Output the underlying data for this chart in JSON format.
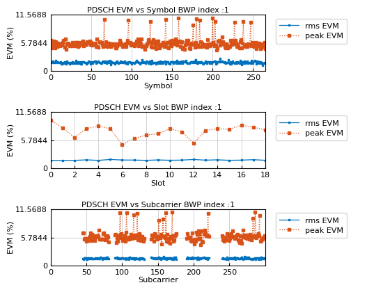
{
  "title1": "PDSCH EVM vs Symbol BWP index :1",
  "title2": "PDSCH EVM vs Slot BWP index :1",
  "title3": "PDSCH EVM vs Subcarrier BWP index :1",
  "xlabel1": "Symbol",
  "xlabel2": "Slot",
  "xlabel3": "Subcarrier",
  "ylabel": "EVM (%)",
  "yticks": [
    0,
    5.7844,
    11.5688
  ],
  "ytick_labels": [
    "0",
    "5.7844",
    "11.5688"
  ],
  "ylim": [
    0,
    11.5688
  ],
  "rms_color": "#0072BD",
  "peak_color": "#D95319",
  "rms_label": "rms EVM",
  "peak_label": "peak EVM",
  "symbol_xlim": [
    0,
    265
  ],
  "slot_xlim": [
    0,
    18
  ],
  "subcarrier_xlim": [
    0,
    300
  ],
  "symbol_xticks": [
    0,
    50,
    100,
    150,
    200,
    250
  ],
  "slot_xticks": [
    0,
    2,
    4,
    6,
    8,
    10,
    12,
    14,
    16,
    18
  ],
  "subcarrier_xticks": [
    0,
    50,
    100,
    150,
    200,
    250
  ],
  "n_symbols": 266,
  "n_slots": 19,
  "n_subcarriers": 300,
  "rms_symbol_mean": 1.8,
  "rms_symbol_std": 0.2,
  "peak_symbol_mean": 5.5,
  "peak_symbol_std": 0.5,
  "peak_symbol_spike_prob": 0.04,
  "peak_symbol_spike_mag": 5.0,
  "rms_slot_mean": 1.7,
  "rms_slot_std": 0.05,
  "peak_slot_mean": 7.2,
  "peak_slot_std": 1.5,
  "rms_sub_mean": 1.5,
  "rms_sub_std": 0.12,
  "peak_sub_mean": 5.8,
  "peak_sub_std": 0.6,
  "seed": 42,
  "bg_color": "#ffffff",
  "grid_color": "#c0c0c0",
  "figsize": [
    5.6,
    4.2
  ],
  "dpi": 100
}
